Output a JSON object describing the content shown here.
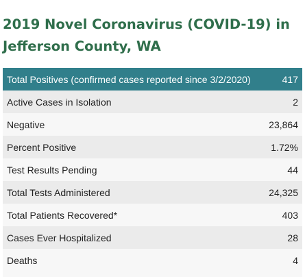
{
  "page": {
    "title_line1": "2019 Novel Coronavirus (COVID-19) in",
    "title_line2": "Jefferson County, WA"
  },
  "table": {
    "rows": [
      {
        "label": "Total Positives (confirmed cases reported since 3/2/2020)",
        "value": "417"
      },
      {
        "label": "Active Cases in Isolation",
        "value": "2"
      },
      {
        "label": "Negative",
        "value": "23,864"
      },
      {
        "label": "Percent Positive",
        "value": "1.72%"
      },
      {
        "label": "Test Results Pending",
        "value": "44"
      },
      {
        "label": "Total Tests Administered",
        "value": "24,325"
      },
      {
        "label": "Total Patients Recovered*",
        "value": "403"
      },
      {
        "label": "Cases Ever Hospitalized",
        "value": "28"
      },
      {
        "label": "Deaths",
        "value": "4"
      }
    ]
  },
  "colors": {
    "title": "#2f6e4b",
    "header_row_bg": "#317f8b",
    "row_bg_odd": "#ebebeb",
    "row_bg_even": "#f7f7f7"
  }
}
